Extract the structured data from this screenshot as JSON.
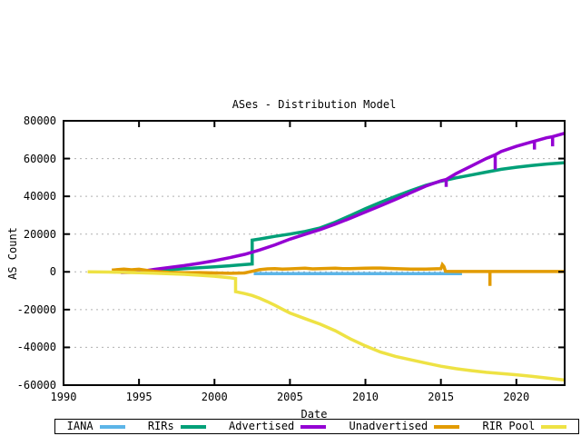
{
  "title": "ASes - Distribution Model",
  "chart_data": {
    "type": "line",
    "title": "ASes - Distribution Model",
    "xlabel": "Date",
    "ylabel": "AS Count",
    "xlim": [
      1990,
      2023.2
    ],
    "ylim": [
      -60000,
      80000
    ],
    "x_ticks": [
      1990,
      1995,
      2000,
      2005,
      2010,
      2015,
      2020
    ],
    "y_ticks": [
      -60000,
      -40000,
      -20000,
      0,
      20000,
      40000,
      60000,
      80000
    ],
    "grid": "horizontal dashed gray lines at y ticks, none vertical",
    "legend_position": "bottom strip, single row, boxed",
    "background": "#ffffff",
    "border_color": "#000000",
    "grid_color": "#b0b0b0",
    "series": [
      {
        "name": "IANA",
        "color": "#5cb5e8",
        "points": [
          [
            2002.6,
            -900
          ],
          [
            2016.4,
            -900
          ]
        ]
      },
      {
        "name": "RIRs",
        "color": "#00a078",
        "points": [
          [
            1994.3,
            100
          ],
          [
            1995,
            300
          ],
          [
            1996,
            600
          ],
          [
            1997,
            1100
          ],
          [
            1998,
            1700
          ],
          [
            1999,
            2200
          ],
          [
            2000,
            2700
          ],
          [
            2001,
            3200
          ],
          [
            2002,
            3900
          ],
          [
            2002.5,
            4200
          ],
          [
            2002.5,
            16800
          ],
          [
            2003,
            17400
          ],
          [
            2004,
            18800
          ],
          [
            2005,
            20000
          ],
          [
            2006,
            21400
          ],
          [
            2007,
            23300
          ],
          [
            2008,
            26300
          ],
          [
            2009,
            29800
          ],
          [
            2010,
            33500
          ],
          [
            2011,
            36800
          ],
          [
            2012,
            40000
          ],
          [
            2013,
            43000
          ],
          [
            2014,
            45800
          ],
          [
            2015,
            48000
          ],
          [
            2016,
            49800
          ],
          [
            2017,
            51300
          ],
          [
            2018,
            52800
          ],
          [
            2019,
            54300
          ],
          [
            2020,
            55400
          ],
          [
            2021,
            56300
          ],
          [
            2022,
            57100
          ],
          [
            2023.2,
            57800
          ]
        ]
      },
      {
        "name": "Advertised",
        "color": "#9400d3",
        "points": [
          [
            1993.8,
            -400
          ],
          [
            1994.5,
            -200
          ],
          [
            1995,
            100
          ],
          [
            1996,
            1300
          ],
          [
            1997,
            2300
          ],
          [
            1998,
            3300
          ],
          [
            1999,
            4500
          ],
          [
            2000,
            5900
          ],
          [
            2001,
            7500
          ],
          [
            2002,
            9300
          ],
          [
            2003,
            11600
          ],
          [
            2004,
            14300
          ],
          [
            2005,
            17300
          ],
          [
            2006,
            19900
          ],
          [
            2007,
            22400
          ],
          [
            2008,
            25300
          ],
          [
            2009,
            28400
          ],
          [
            2010,
            31700
          ],
          [
            2011,
            35000
          ],
          [
            2012,
            38400
          ],
          [
            2013,
            41900
          ],
          [
            2014,
            45400
          ],
          [
            2015,
            48200
          ],
          [
            2015.35,
            48900
          ],
          [
            2015.35,
            45000
          ],
          [
            2015.35,
            48900
          ],
          [
            2016,
            52000
          ],
          [
            2017,
            56000
          ],
          [
            2018,
            60000
          ],
          [
            2018.6,
            62000
          ],
          [
            2018.6,
            54200
          ],
          [
            2018.6,
            62000
          ],
          [
            2019,
            63800
          ],
          [
            2020,
            66500
          ],
          [
            2021,
            68800
          ],
          [
            2021.2,
            69200
          ],
          [
            2021.2,
            64800
          ],
          [
            2021.2,
            69200
          ],
          [
            2022,
            71000
          ],
          [
            2022.4,
            71600
          ],
          [
            2022.4,
            66500
          ],
          [
            2022.4,
            71600
          ],
          [
            2023.2,
            73400
          ]
        ]
      },
      {
        "name": "Unadvertised",
        "color": "#e29b00",
        "points": [
          [
            1993.2,
            900
          ],
          [
            1994,
            1500
          ],
          [
            1994.5,
            1100
          ],
          [
            1995,
            1400
          ],
          [
            1995.5,
            800
          ],
          [
            1996,
            300
          ],
          [
            1997,
            -300
          ],
          [
            1998,
            -500
          ],
          [
            1999,
            -400
          ],
          [
            2000,
            -600
          ],
          [
            2001,
            -800
          ],
          [
            2002,
            -600
          ],
          [
            2002.5,
            300
          ],
          [
            2003,
            1200
          ],
          [
            2003.5,
            1600
          ],
          [
            2004,
            1700
          ],
          [
            2004.5,
            1500
          ],
          [
            2005,
            1600
          ],
          [
            2006,
            1900
          ],
          [
            2006.5,
            1600
          ],
          [
            2007,
            1700
          ],
          [
            2008,
            1900
          ],
          [
            2008.5,
            1700
          ],
          [
            2009,
            1700
          ],
          [
            2010,
            1900
          ],
          [
            2010.5,
            2000
          ],
          [
            2011,
            2000
          ],
          [
            2012,
            1700
          ],
          [
            2013,
            1500
          ],
          [
            2014,
            1500
          ],
          [
            2014.5,
            1600
          ],
          [
            2015,
            1700
          ],
          [
            2015.1,
            3800
          ],
          [
            2015.2,
            2800
          ],
          [
            2015.3,
            300
          ],
          [
            2016,
            200
          ],
          [
            2017,
            200
          ],
          [
            2018.25,
            200
          ],
          [
            2018.25,
            -7400
          ],
          [
            2018.25,
            200
          ],
          [
            2019,
            200
          ],
          [
            2020,
            200
          ],
          [
            2021,
            200
          ],
          [
            2022,
            200
          ],
          [
            2023.2,
            200
          ]
        ]
      },
      {
        "name": "RIR Pool",
        "color": "#eee244",
        "points": [
          [
            1991.6,
            0
          ],
          [
            1993,
            -100
          ],
          [
            1994,
            -300
          ],
          [
            1995,
            -500
          ],
          [
            1996,
            -700
          ],
          [
            1997,
            -1000
          ],
          [
            1998,
            -1300
          ],
          [
            1999,
            -1800
          ],
          [
            2000,
            -2300
          ],
          [
            2001,
            -3100
          ],
          [
            2001.4,
            -3500
          ],
          [
            2001.4,
            -10500
          ],
          [
            2002,
            -11500
          ],
          [
            2002.5,
            -12500
          ],
          [
            2003,
            -14000
          ],
          [
            2003.5,
            -15800
          ],
          [
            2004,
            -17700
          ],
          [
            2004.5,
            -19800
          ],
          [
            2005,
            -21800
          ],
          [
            2006,
            -24800
          ],
          [
            2007,
            -27700
          ],
          [
            2008,
            -31200
          ],
          [
            2009,
            -35500
          ],
          [
            2010,
            -39200
          ],
          [
            2011,
            -42500
          ],
          [
            2012,
            -44800
          ],
          [
            2013,
            -46600
          ],
          [
            2014,
            -48300
          ],
          [
            2015,
            -50000
          ],
          [
            2016,
            -51300
          ],
          [
            2017,
            -52300
          ],
          [
            2018,
            -53200
          ],
          [
            2019,
            -53900
          ],
          [
            2020,
            -54500
          ],
          [
            2021,
            -55300
          ],
          [
            2022,
            -56200
          ],
          [
            2023.2,
            -57300
          ]
        ]
      }
    ]
  }
}
